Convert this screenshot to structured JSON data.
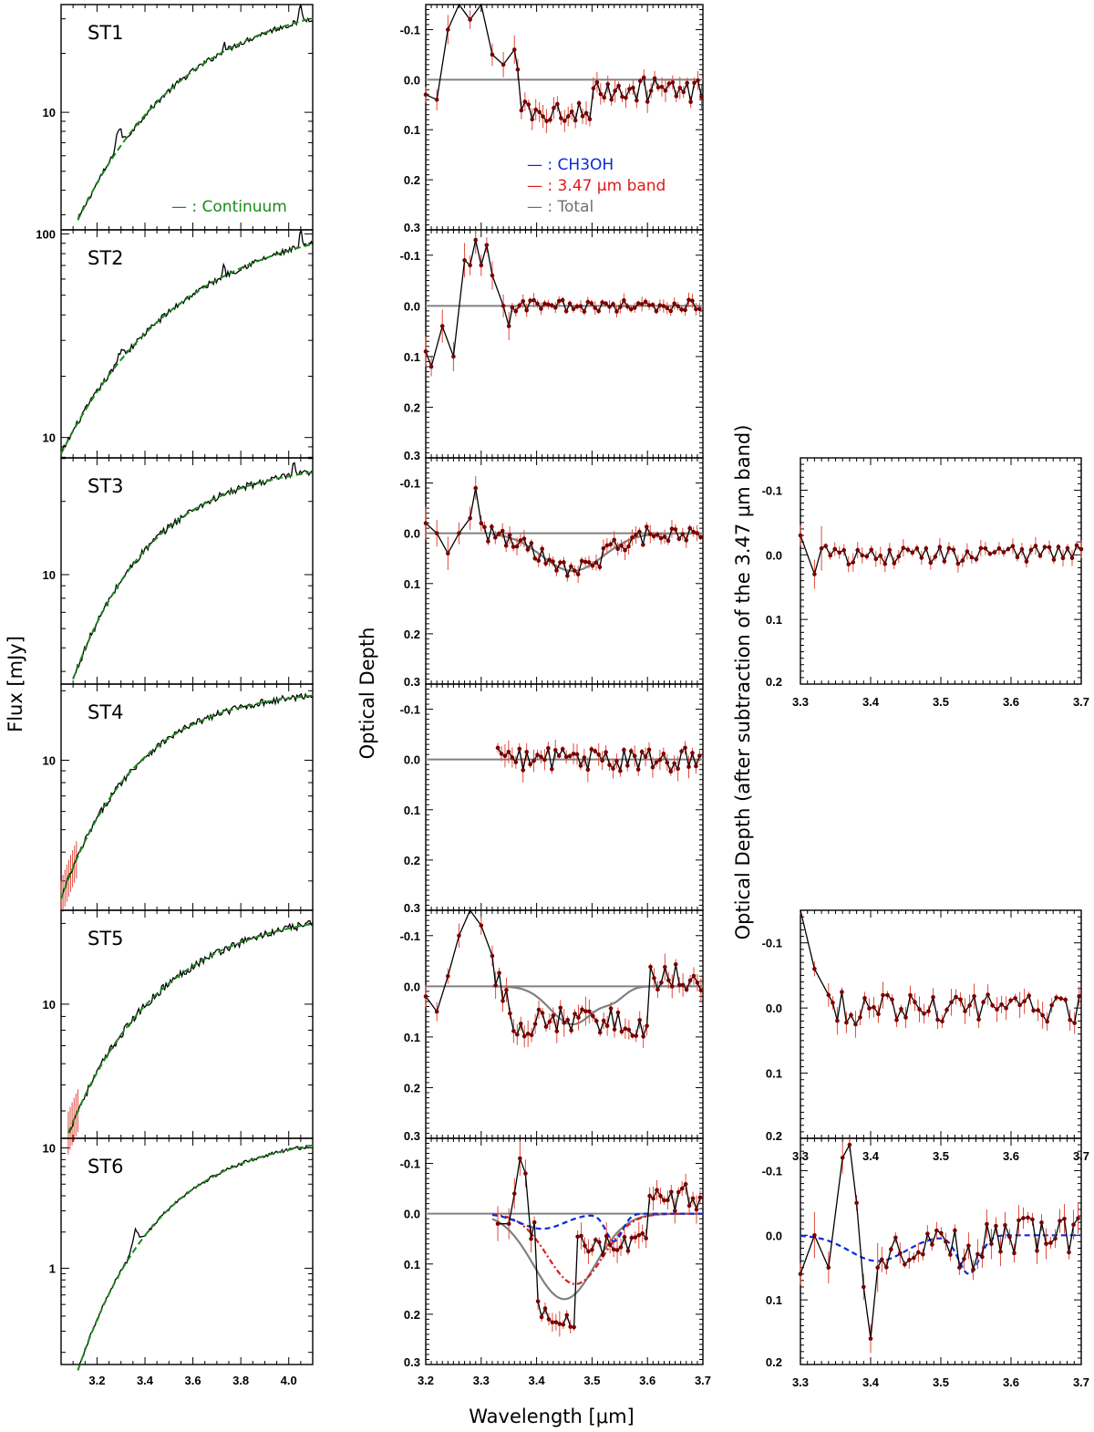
{
  "chart_data": {
    "type": "line",
    "description_title": "Spectra of ST1-ST6: flux with continuum, optical depth, and residual optical depth",
    "axis_labels": {
      "flux_ylabel": "Flux [mJy]",
      "tau_ylabel": "Optical Depth",
      "resid_ylabel": "Optical Depth (after subtraction of the 3.47 μm band)",
      "xlabel": "Wavelength [μm]"
    },
    "flux_xticks": [
      "3.2",
      "3.4",
      "3.6",
      "3.8",
      "4.0"
    ],
    "tau_xticks": [
      "3.2",
      "3.3",
      "3.4",
      "3.5",
      "3.6",
      "3.7"
    ],
    "tau_yticks": [
      "-0.1",
      "0.0",
      "0.1",
      "0.2",
      "0.3"
    ],
    "resid_yticks": [
      "-0.1",
      "0.0",
      "0.1",
      "0.2"
    ],
    "legends": {
      "continuum": "— : Continuum",
      "ch3oh": "— : CH3OH",
      "band347": "— : 3.47 μm band",
      "total": "— : Total"
    },
    "colors": {
      "data": "#000000",
      "points": "#7a0000",
      "errors": "#e04a3a",
      "continuum": "#1a8a1a",
      "ch3oh": "#0a2ad8",
      "band347": "#e01a1a",
      "total": "#808080"
    },
    "panels": [
      {
        "name": "ST1",
        "flux": {
          "xlim": [
            3.05,
            4.1
          ],
          "yticks": [
            "10"
          ],
          "log_range": [
            0.4,
            1.55
          ],
          "tick_logs": [
            1.0
          ],
          "start": 3.12,
          "f0": 0.45,
          "f1": 1.48,
          "k": 2.2,
          "lines": [
            [
              3.73,
              0.06
            ],
            [
              4.05,
              0.16
            ]
          ],
          "features": [
            [
              3.29,
              0.1
            ]
          ],
          "err_until": 0
        },
        "tau": {
          "ylim": [
            -0.15,
            0.3
          ],
          "start": 3.2,
          "amp": 0.025,
          "early": [
            [
              3.2,
              0.03
            ],
            [
              3.22,
              0.04
            ],
            [
              3.24,
              -0.1
            ],
            [
              3.26,
              -0.18
            ],
            [
              3.28,
              -0.12
            ],
            [
              3.3,
              -0.17
            ],
            [
              3.32,
              -0.05
            ],
            [
              3.34,
              -0.03
            ],
            [
              3.36,
              -0.06
            ]
          ],
          "noise_mean": [
            [
              3.37,
              3.5,
              0.06
            ],
            [
              3.5,
              3.7,
              0.02
            ]
          ],
          "model": null
        },
        "resid": null
      },
      {
        "name": "ST2",
        "flux": {
          "xlim": [
            3.05,
            4.1
          ],
          "yticks": [
            "100",
            "10"
          ],
          "log_range": [
            0.9,
            2.02
          ],
          "tick_logs": [
            2.0,
            1.0
          ],
          "start": 3.05,
          "f0": 0.92,
          "f1": 1.95,
          "k": 2.0,
          "lines": [
            [
              3.73,
              0.07
            ],
            [
              4.05,
              0.1
            ]
          ],
          "features": [
            [
              3.3,
              0.05
            ]
          ],
          "err_until": 0
        },
        "tau": {
          "ylim": [
            -0.15,
            0.3
          ],
          "start": 3.2,
          "amp": 0.012,
          "early": [
            [
              3.2,
              0.09
            ],
            [
              3.21,
              0.12
            ],
            [
              3.23,
              0.04
            ],
            [
              3.25,
              0.1
            ],
            [
              3.27,
              -0.09
            ],
            [
              3.28,
              -0.08
            ],
            [
              3.29,
              -0.13
            ],
            [
              3.3,
              -0.08
            ],
            [
              3.31,
              -0.12
            ],
            [
              3.32,
              -0.06
            ],
            [
              3.34,
              0.0
            ],
            [
              3.35,
              0.04
            ]
          ],
          "noise_mean": [
            [
              3.36,
              3.7,
              0.0
            ]
          ],
          "model": null
        },
        "resid": null
      },
      {
        "name": "ST3",
        "flux": {
          "xlim": [
            3.05,
            4.1
          ],
          "yticks": [
            "10"
          ],
          "log_range": [
            0.55,
            1.48
          ],
          "tick_logs": [
            1.0
          ],
          "start": 3.1,
          "f0": 0.57,
          "f1": 1.42,
          "k": 3.0,
          "lines": [
            [
              4.02,
              0.06
            ]
          ],
          "features": [],
          "err_until": 0
        },
        "tau": {
          "ylim": [
            -0.15,
            0.3
          ],
          "start": 3.2,
          "amp": 0.018,
          "early": [
            [
              3.2,
              -0.02
            ],
            [
              3.22,
              0.0
            ],
            [
              3.24,
              0.04
            ],
            [
              3.26,
              0.0
            ],
            [
              3.28,
              -0.03
            ],
            [
              3.29,
              -0.09
            ],
            [
              3.3,
              -0.02
            ]
          ],
          "noise_mean": [
            [
              3.31,
              3.7,
              0.0
            ]
          ],
          "model": {
            "total": [
              [
                0.075,
                3.465,
                0.055
              ]
            ],
            "ch3oh": null,
            "band": null
          },
          "follow_model": true
        },
        "resid": {
          "ylim": [
            -0.15,
            0.2
          ],
          "start": 3.3,
          "amp": 0.015,
          "mean": 0.0,
          "early": [
            [
              3.3,
              -0.03
            ],
            [
              3.32,
              0.03
            ],
            [
              3.33,
              -0.01
            ]
          ],
          "model": null
        }
      },
      {
        "name": "ST4",
        "flux": {
          "xlim": [
            3.05,
            4.1
          ],
          "yticks": [
            "10"
          ],
          "log_range": [
            0.35,
            1.33
          ],
          "tick_logs": [
            1.0
          ],
          "start": 3.05,
          "f0": 0.4,
          "f1": 1.28,
          "k": 3.2,
          "lines": [],
          "features": [],
          "err_until": 3.12
        },
        "tau": {
          "ylim": [
            -0.15,
            0.3
          ],
          "start": 3.33,
          "amp": 0.025,
          "early": [],
          "noise_mean": [
            [
              3.33,
              3.7,
              0.0
            ]
          ],
          "model": null
        },
        "resid": null
      },
      {
        "name": "ST5",
        "flux": {
          "xlim": [
            3.05,
            4.1
          ],
          "yticks": [
            "10"
          ],
          "log_range": [
            0.5,
            1.35
          ],
          "tick_logs": [
            1.0
          ],
          "start": 3.08,
          "f0": 0.52,
          "f1": 1.3,
          "k": 2.6,
          "lines": [],
          "features": [],
          "err_until": 3.12
        },
        "tau": {
          "ylim": [
            -0.15,
            0.3
          ],
          "start": 3.2,
          "amp": 0.03,
          "early": [
            [
              3.2,
              0.02
            ],
            [
              3.22,
              0.05
            ],
            [
              3.24,
              -0.02
            ],
            [
              3.26,
              -0.1
            ],
            [
              3.28,
              -0.18
            ],
            [
              3.3,
              -0.12
            ],
            [
              3.32,
              -0.06
            ]
          ],
          "noise_mean": [
            [
              3.35,
              3.6,
              0.07
            ],
            [
              3.6,
              3.7,
              -0.02
            ]
          ],
          "model": {
            "total": [
              [
                0.075,
                3.465,
                0.04
              ],
              [
                0.02,
                3.54,
                0.02
              ]
            ],
            "ch3oh": null,
            "band": null
          }
        },
        "resid": {
          "ylim": [
            -0.15,
            0.2
          ],
          "start": 3.3,
          "amp": 0.025,
          "mean": 0.0,
          "early": [
            [
              3.3,
              -0.16
            ],
            [
              3.32,
              -0.06
            ],
            [
              3.34,
              -0.02
            ]
          ],
          "model": null
        }
      },
      {
        "name": "ST6",
        "flux": {
          "xlim": [
            3.05,
            4.1
          ],
          "yticks": [
            "10",
            "1"
          ],
          "log_range": [
            -0.8,
            1.08
          ],
          "tick_logs": [
            1.0,
            0.0
          ],
          "start": 3.12,
          "f0": -0.85,
          "f1": 1.02,
          "k": 3.0,
          "lines": [],
          "features": [
            [
              3.36,
              0.15
            ]
          ],
          "err_until": 0
        },
        "tau": {
          "ylim": [
            -0.15,
            0.3
          ],
          "start": 3.33,
          "amp": 0.03,
          "early": [
            [
              3.33,
              0.02
            ],
            [
              3.35,
              0.02
            ],
            [
              3.36,
              -0.04
            ],
            [
              3.37,
              -0.11
            ],
            [
              3.38,
              -0.08
            ],
            [
              3.39,
              0.05
            ]
          ],
          "noise_mean": [
            [
              3.4,
              3.47,
              0.2
            ],
            [
              3.47,
              3.6,
              0.06
            ],
            [
              3.6,
              3.7,
              -0.03
            ]
          ],
          "model": {
            "total": [
              [
                0.17,
                3.45,
                0.055
              ]
            ],
            "ch3oh": [
              [
                0.03,
                3.41,
                0.04
              ],
              [
                0.055,
                3.54,
                0.015
              ]
            ],
            "band": [
              [
                0.14,
                3.47,
                0.05
              ]
            ]
          }
        },
        "resid": {
          "ylim": [
            -0.15,
            0.2
          ],
          "start": 3.3,
          "amp": 0.03,
          "mean": 0.02,
          "early": [
            [
              3.3,
              0.06
            ],
            [
              3.32,
              0.0
            ],
            [
              3.34,
              0.05
            ],
            [
              3.36,
              -0.12
            ],
            [
              3.37,
              -0.14
            ],
            [
              3.38,
              -0.05
            ],
            [
              3.39,
              0.08
            ],
            [
              3.4,
              0.16
            ],
            [
              3.41,
              0.05
            ]
          ],
          "model": {
            "ch3oh": [
              [
                0.04,
                3.41,
                0.04
              ],
              [
                0.06,
                3.54,
                0.015
              ]
            ]
          }
        }
      }
    ]
  }
}
